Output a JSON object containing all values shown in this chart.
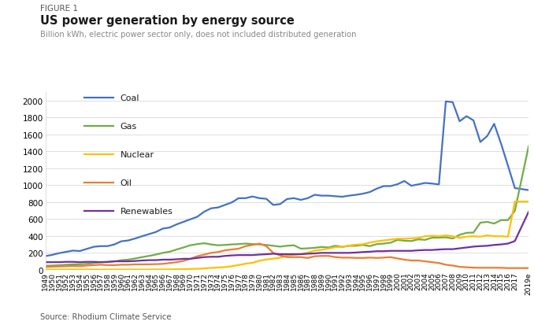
{
  "title_fig": "FIGURE 1",
  "title_main": "US power generation by energy source",
  "subtitle": "Billion kWh, electric power sector only, does not included distributed generation",
  "source": "Source: Rhodium Climate Service",
  "years": [
    1949,
    1950,
    1951,
    1952,
    1953,
    1954,
    1955,
    1956,
    1957,
    1958,
    1959,
    1960,
    1961,
    1962,
    1963,
    1964,
    1965,
    1966,
    1967,
    1968,
    1969,
    1970,
    1971,
    1972,
    1973,
    1974,
    1975,
    1976,
    1977,
    1978,
    1979,
    1980,
    1981,
    1982,
    1983,
    1984,
    1985,
    1986,
    1987,
    1988,
    1989,
    1990,
    1991,
    1992,
    1993,
    1994,
    1995,
    1996,
    1997,
    1998,
    1999,
    2000,
    2001,
    2002,
    2003,
    2004,
    2005,
    2006,
    2007,
    2008,
    2009,
    2010,
    2011,
    2012,
    2013,
    2014,
    2015,
    2016,
    2017,
    2019
  ],
  "coal": [
    160,
    175,
    195,
    210,
    225,
    220,
    245,
    270,
    278,
    278,
    298,
    335,
    345,
    368,
    395,
    420,
    445,
    485,
    498,
    535,
    565,
    595,
    625,
    685,
    725,
    735,
    765,
    795,
    845,
    845,
    865,
    845,
    838,
    765,
    775,
    835,
    845,
    825,
    845,
    885,
    875,
    875,
    868,
    862,
    875,
    885,
    898,
    918,
    958,
    988,
    988,
    1010,
    1048,
    992,
    1008,
    1025,
    1018,
    1008,
    1990,
    1980,
    1755,
    1815,
    1765,
    1510,
    1580,
    1725,
    1490,
    1230,
    965,
    940
  ],
  "gas": [
    45,
    48,
    52,
    58,
    62,
    63,
    68,
    78,
    88,
    88,
    98,
    112,
    118,
    132,
    148,
    162,
    178,
    198,
    212,
    238,
    262,
    288,
    302,
    312,
    298,
    288,
    292,
    298,
    302,
    308,
    302,
    298,
    292,
    282,
    272,
    282,
    288,
    248,
    252,
    258,
    268,
    262,
    282,
    268,
    282,
    282,
    292,
    278,
    302,
    308,
    318,
    352,
    342,
    338,
    358,
    352,
    378,
    378,
    382,
    368,
    412,
    435,
    438,
    555,
    565,
    545,
    585,
    585,
    695,
    1460
  ],
  "nuclear": [
    1,
    1,
    1,
    1,
    1,
    1,
    1,
    1,
    1,
    1,
    1,
    1,
    1,
    1,
    1,
    1,
    2,
    2,
    3,
    4,
    5,
    8,
    10,
    15,
    20,
    25,
    30,
    40,
    55,
    70,
    80,
    105,
    120,
    130,
    140,
    165,
    175,
    185,
    200,
    225,
    235,
    250,
    265,
    270,
    285,
    295,
    300,
    320,
    335,
    345,
    355,
    365,
    365,
    370,
    375,
    395,
    400,
    395,
    405,
    395,
    375,
    390,
    395,
    390,
    405,
    395,
    395,
    390,
    805,
    805
  ],
  "oil": [
    30,
    35,
    38,
    40,
    43,
    40,
    48,
    53,
    58,
    53,
    53,
    58,
    58,
    62,
    62,
    63,
    65,
    68,
    78,
    88,
    103,
    128,
    158,
    178,
    198,
    208,
    228,
    238,
    248,
    278,
    292,
    308,
    278,
    198,
    168,
    148,
    148,
    148,
    138,
    158,
    162,
    162,
    148,
    142,
    142,
    138,
    138,
    142,
    138,
    142,
    148,
    132,
    118,
    108,
    108,
    98,
    88,
    78,
    58,
    48,
    33,
    28,
    23,
    22,
    22,
    22,
    22,
    18,
    18,
    18
  ],
  "renewables": [
    88,
    88,
    88,
    92,
    92,
    88,
    92,
    92,
    88,
    92,
    98,
    98,
    98,
    102,
    108,
    112,
    112,
    118,
    118,
    122,
    128,
    128,
    138,
    148,
    152,
    152,
    162,
    168,
    172,
    172,
    172,
    178,
    182,
    188,
    182,
    182,
    182,
    182,
    188,
    192,
    198,
    198,
    198,
    198,
    198,
    202,
    208,
    212,
    218,
    218,
    222,
    222,
    222,
    222,
    228,
    232,
    232,
    238,
    242,
    242,
    252,
    262,
    272,
    278,
    282,
    292,
    298,
    308,
    338,
    685
  ],
  "coal_color": "#4472c4",
  "gas_color": "#70ad47",
  "nuclear_color": "#ffc000",
  "oil_color": "#ed7d31",
  "renewables_color": "#7030a0",
  "ylim": [
    0,
    2100
  ],
  "yticks": [
    0,
    200,
    400,
    600,
    800,
    1000,
    1200,
    1400,
    1600,
    1800,
    2000
  ],
  "background_color": "#ffffff",
  "line_width": 1.6
}
